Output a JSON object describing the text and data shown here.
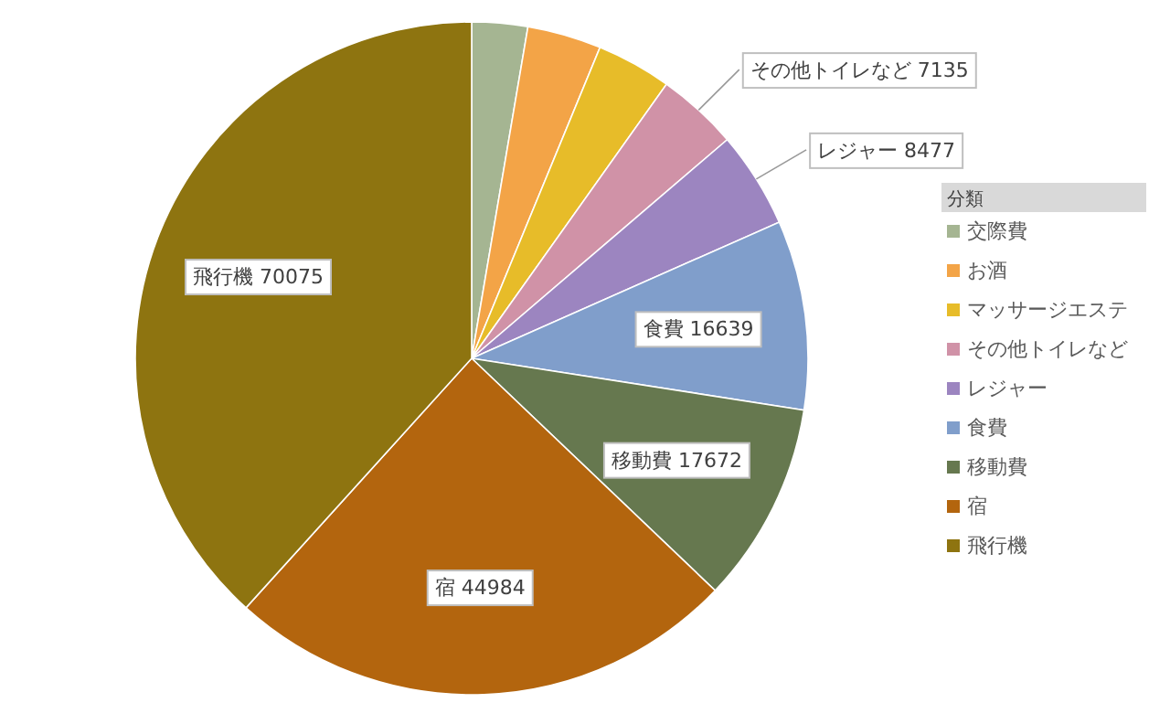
{
  "chart_data": {
    "type": "pie",
    "legend_title": "分類",
    "legend": "right",
    "categories": [
      "交際費",
      "お酒",
      "マッサージエステ",
      "その他トイレなど",
      "レジャー",
      "食費",
      "移動費",
      "宿",
      "飛行機"
    ],
    "values": [
      4900,
      6500,
      6600,
      7135,
      8477,
      16639,
      17672,
      44984,
      70075
    ],
    "colors": [
      "#a5b592",
      "#f3a447",
      "#e7bc29",
      "#d092a7",
      "#9c85c0",
      "#809ecb",
      "#66784f",
      "#b3650e",
      "#8e7410"
    ],
    "value_labels": [
      null,
      null,
      null,
      "その他トイレなど 7135",
      "レジャー 8477",
      "食費 16639",
      "移動費 17672",
      "宿 44984",
      "飛行機 70075"
    ]
  }
}
